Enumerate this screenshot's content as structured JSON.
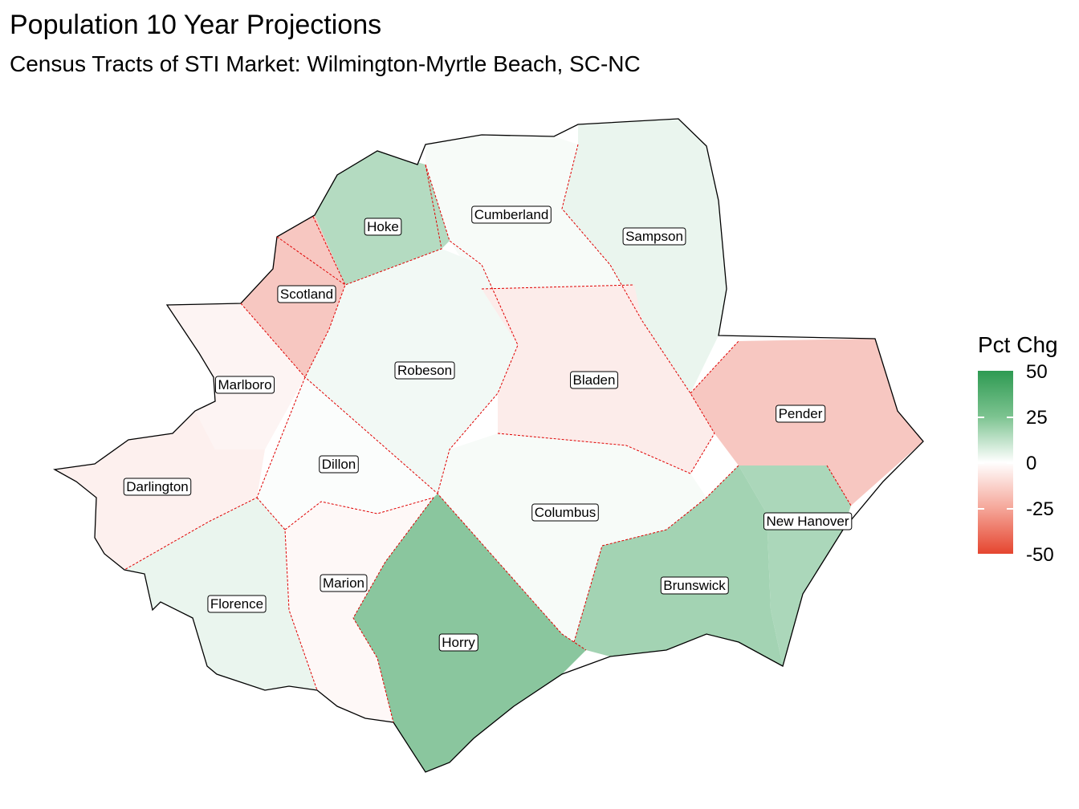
{
  "title": "Population 10 Year Projections",
  "subtitle": "Census Tracts of STI Market: Wilmington-Myrtle Beach, SC-NC",
  "legend": {
    "title": "Pct Chg",
    "ticks": [
      "50",
      "25",
      "0",
      "-25",
      "-50"
    ],
    "range": [
      -50,
      50
    ],
    "colors": {
      "high": "#2e9a52",
      "mid": "#ffffff",
      "low": "#e5452f"
    }
  },
  "counties": [
    {
      "name": "Hoke",
      "pct_chg": 18
    },
    {
      "name": "Cumberland",
      "pct_chg": 2
    },
    {
      "name": "Sampson",
      "pct_chg": 5
    },
    {
      "name": "Scotland",
      "pct_chg": -15
    },
    {
      "name": "Robeson",
      "pct_chg": 3
    },
    {
      "name": "Bladen",
      "pct_chg": -5
    },
    {
      "name": "Marlboro",
      "pct_chg": -3
    },
    {
      "name": "Pender",
      "pct_chg": -15
    },
    {
      "name": "Dillon",
      "pct_chg": 1
    },
    {
      "name": "Darlington",
      "pct_chg": -4
    },
    {
      "name": "Columbus",
      "pct_chg": 2
    },
    {
      "name": "New Hanover",
      "pct_chg": 20
    },
    {
      "name": "Brunswick",
      "pct_chg": 22
    },
    {
      "name": "Marion",
      "pct_chg": -2
    },
    {
      "name": "Florence",
      "pct_chg": 5
    },
    {
      "name": "Horry",
      "pct_chg": 28
    }
  ]
}
